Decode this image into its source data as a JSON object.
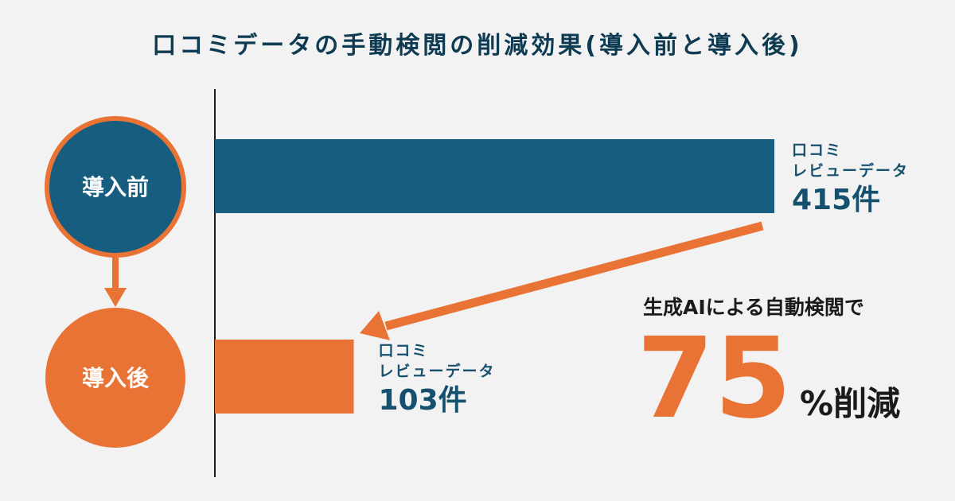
{
  "chart_data": {
    "type": "bar",
    "orientation": "horizontal",
    "title": "口コミデータの手動検閲の削減効果(導入前と導入後)",
    "categories": [
      "導入前",
      "導入後"
    ],
    "values": [
      415,
      103
    ],
    "bar_labels": [
      {
        "line1": "口コミ",
        "line2": "レビューデータ",
        "value_text": "415件"
      },
      {
        "line1": "口コミ",
        "line2": "レビューデータ",
        "value_text": "103件"
      }
    ],
    "colors": [
      "#165d80",
      "#e87334"
    ],
    "annotation": {
      "caption": "生成AIによる自動検閲で",
      "percent": "75",
      "suffix": "%削減"
    },
    "grid": false
  },
  "colors": {
    "background": "#f2f2f2",
    "primary": "#165d80",
    "accent": "#e87334",
    "title": "#0f3b52"
  }
}
